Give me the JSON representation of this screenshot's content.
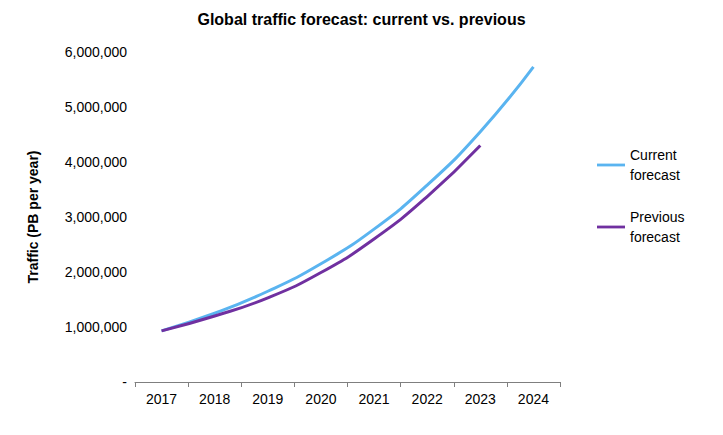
{
  "chart_data": {
    "type": "line",
    "title": "Global traffic forecast: current vs. previous",
    "y_label": "Traffic (PB per year)",
    "categories": [
      "2017",
      "2018",
      "2019",
      "2020",
      "2021",
      "2022",
      "2023",
      "2024"
    ],
    "series": [
      {
        "name": "Current forecast",
        "color": "#5AB4F0",
        "line_style": "solid",
        "marker": "none",
        "values": [
          930000,
          1250000,
          1650000,
          2150000,
          2780000,
          3580000,
          4550000,
          5730000
        ]
      },
      {
        "name": "Previous forecast",
        "color": "#7030A0",
        "line_style": "solid",
        "marker": "none",
        "values": [
          930000,
          1200000,
          1530000,
          1990000,
          2600000,
          3370000,
          4300000,
          null
        ]
      }
    ],
    "ylim": [
      0,
      6000000
    ],
    "yticks": [
      {
        "value": 0,
        "label": "-"
      },
      {
        "value": 1000000,
        "label": "1,000,000"
      },
      {
        "value": 2000000,
        "label": "2,000,000"
      },
      {
        "value": 3000000,
        "label": "3,000,000"
      },
      {
        "value": 4000000,
        "label": "4,000,000"
      },
      {
        "value": 5000000,
        "label": "5,000,000"
      },
      {
        "value": 6000000,
        "label": "6,000,000"
      }
    ],
    "grid": false,
    "legend": "right"
  }
}
